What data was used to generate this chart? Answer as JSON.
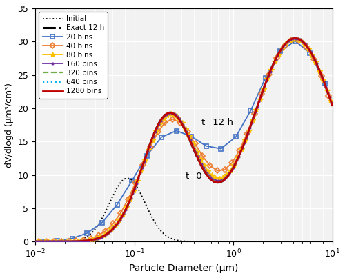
{
  "xlabel": "Particle Diameter (μm)",
  "ylabel": "dV/dlogd (μm³/cm³)",
  "xlim": [
    0.01,
    10
  ],
  "ylim": [
    0,
    35
  ],
  "yticks": [
    0,
    5,
    10,
    15,
    20,
    25,
    30,
    35
  ],
  "annotation_t12": "t=12 h",
  "annotation_t0": "t=0",
  "legend_entries": [
    "Initial",
    "Exact 12 h",
    "20 bins",
    "40 bins",
    "80 bins",
    "160 bins",
    "320 bins",
    "640 bins",
    "1280 bins"
  ],
  "colors": {
    "initial": "#000000",
    "exact": "#000000",
    "bins20": "#4472C4",
    "bins40": "#ED7D31",
    "bins80": "#FFC000",
    "bins160": "#7030A0",
    "bins320": "#70AD47",
    "bins640": "#00B0F0",
    "bins1280": "#C00000"
  },
  "background_color": "#f2f2f2"
}
